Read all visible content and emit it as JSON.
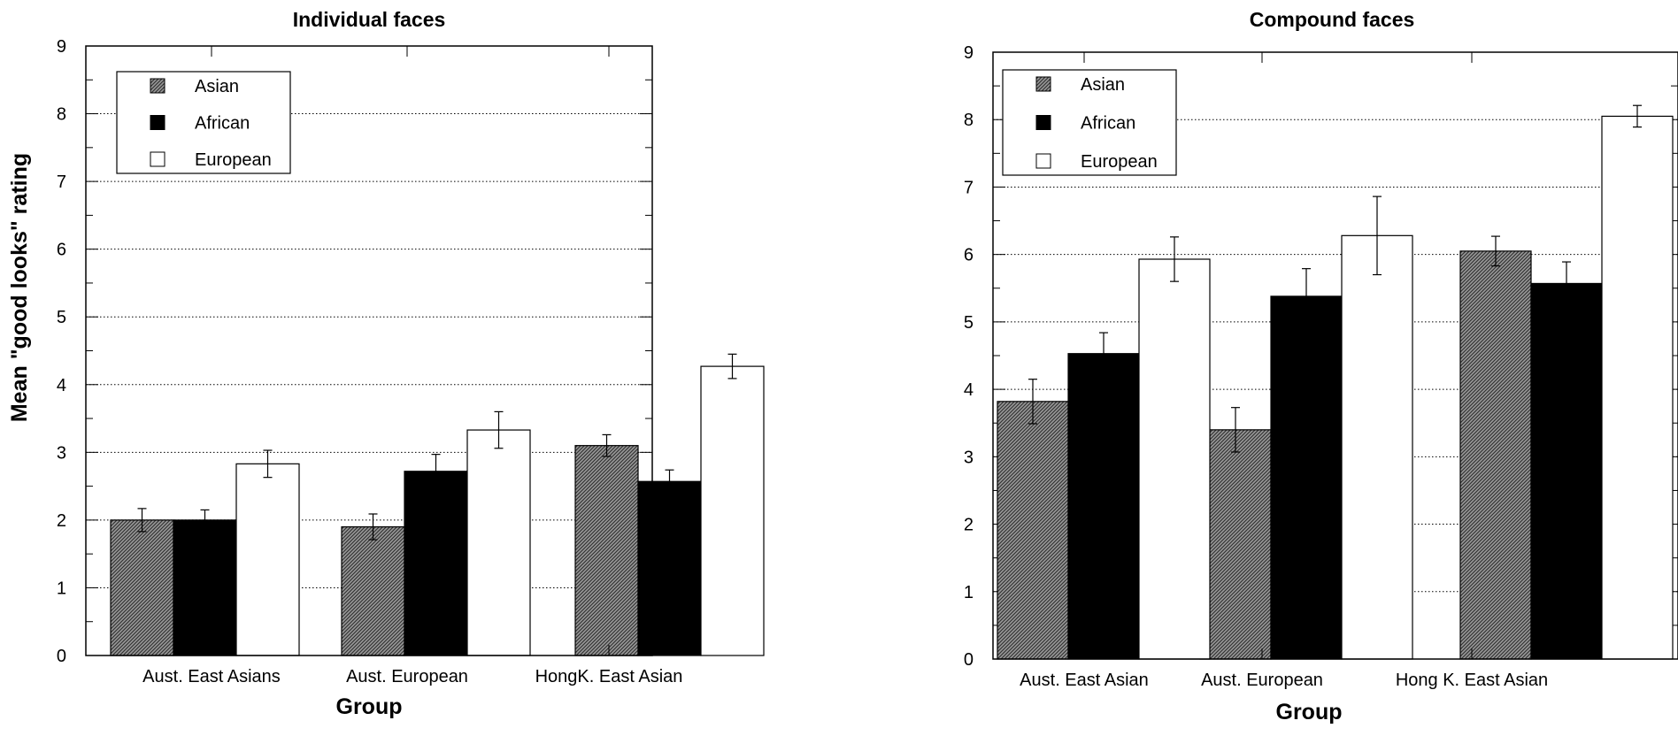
{
  "ylabel": "Mean \"good looks\" rating",
  "colors": {
    "Asian": "hatched-gray",
    "African": "#000000",
    "European": "#ffffff",
    "axis": "#000000",
    "grid": "#000000"
  },
  "chart_data": [
    {
      "type": "bar",
      "title": "Individual faces",
      "xlabel": "Group",
      "ylabel": "Mean \"good looks\" rating",
      "categories": [
        "Aust. East Asians",
        "Aust. European",
        "HongK. East Asian"
      ],
      "ylim": [
        0,
        9
      ],
      "yticks": [
        "0",
        "1",
        "2",
        "3",
        "4",
        "5",
        "6",
        "7",
        "8",
        "9"
      ],
      "grid": true,
      "legend": "top-left",
      "series": [
        {
          "name": "Asian",
          "values": [
            2.0,
            1.9,
            3.1
          ],
          "errors": [
            0.17,
            0.19,
            0.16
          ]
        },
        {
          "name": "African",
          "values": [
            2.0,
            2.72,
            2.57
          ],
          "errors": [
            0.15,
            0.25,
            0.17
          ]
        },
        {
          "name": "European",
          "values": [
            2.83,
            3.33,
            4.27
          ],
          "errors": [
            0.2,
            0.27,
            0.18
          ]
        }
      ]
    },
    {
      "type": "bar",
      "title": "Compound faces",
      "xlabel": "Group",
      "ylabel": "",
      "categories": [
        "Aust. East Asian",
        "Aust. European",
        "Hong K. East Asian"
      ],
      "ylim": [
        0,
        9
      ],
      "yticks": [
        "0",
        "1",
        "2",
        "3",
        "4",
        "5",
        "6",
        "7",
        "8",
        "9"
      ],
      "grid": true,
      "legend": "top-left",
      "series": [
        {
          "name": "Asian",
          "values": [
            3.82,
            3.4,
            6.05
          ],
          "errors": [
            0.33,
            0.33,
            0.22
          ]
        },
        {
          "name": "African",
          "values": [
            4.53,
            5.38,
            5.57
          ],
          "errors": [
            0.31,
            0.41,
            0.32
          ]
        },
        {
          "name": "European",
          "values": [
            5.93,
            6.28,
            8.05
          ],
          "errors": [
            0.33,
            0.58,
            0.16
          ]
        }
      ]
    }
  ]
}
